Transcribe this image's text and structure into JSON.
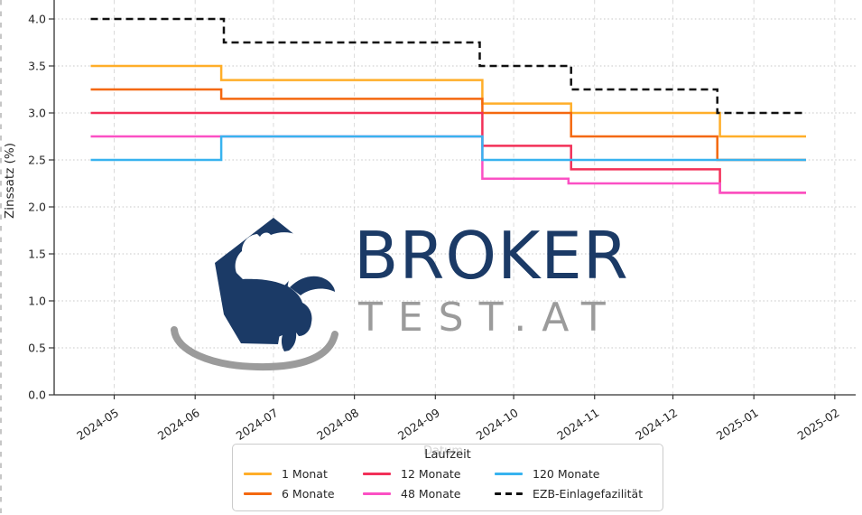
{
  "page": {
    "background": "#ffffff"
  },
  "watermark": {
    "icon": "bull-bear-logo",
    "brand_primary": "BROKER",
    "brand_secondary": "TEST.AT",
    "primary_color": "#1b3a66",
    "secondary_color": "#9b9b9b"
  },
  "chart_data": {
    "type": "line",
    "step": "post",
    "title": "",
    "xlabel": "Datum",
    "ylabel": "Zinssatz (%)",
    "x_ticks": [
      "2024-05",
      "2024-06",
      "2024-07",
      "2024-08",
      "2024-09",
      "2024-10",
      "2024-11",
      "2024-12",
      "2025-01",
      "2025-02"
    ],
    "y_ticks": [
      "0.0",
      "0.5",
      "1.0",
      "1.5",
      "2.0",
      "2.5",
      "3.0",
      "3.5",
      "4.0"
    ],
    "xlim": [
      "2024-04-08",
      "2025-02-09"
    ],
    "ylim": [
      0.0,
      4.2
    ],
    "grid": true,
    "legend": {
      "title": "Laufzeit",
      "position": "bottom",
      "columns": 3
    },
    "axis_color": "#333333",
    "grid_color_h": "#c9c9c9",
    "grid_color_v": "#d6d6d6",
    "series": [
      {
        "name": "1 Monat",
        "color": "#ffae29",
        "dash": null,
        "points": [
          [
            "2024-04-22",
            3.5
          ],
          [
            "2024-06-11",
            3.35
          ],
          [
            "2024-09-19",
            3.1
          ],
          [
            "2024-10-23",
            3.0
          ],
          [
            "2024-12-19",
            2.75
          ],
          [
            "2025-01-21",
            2.75
          ]
        ]
      },
      {
        "name": "6 Monate",
        "color": "#f4680f",
        "dash": null,
        "points": [
          [
            "2024-04-22",
            3.25
          ],
          [
            "2024-06-11",
            3.15
          ],
          [
            "2024-09-19",
            3.0
          ],
          [
            "2024-10-23",
            2.75
          ],
          [
            "2024-12-18",
            2.5
          ],
          [
            "2025-01-21",
            2.5
          ]
        ]
      },
      {
        "name": "12 Monate",
        "color": "#f23058",
        "dash": null,
        "points": [
          [
            "2024-04-22",
            3.0
          ],
          [
            "2024-09-19",
            2.65
          ],
          [
            "2024-10-23",
            2.4
          ],
          [
            "2024-12-19",
            2.15
          ],
          [
            "2025-01-21",
            2.15
          ]
        ]
      },
      {
        "name": "48 Monate",
        "color": "#fb50c4",
        "dash": null,
        "points": [
          [
            "2024-04-22",
            2.75
          ],
          [
            "2024-09-19",
            2.3
          ],
          [
            "2024-10-22",
            2.25
          ],
          [
            "2024-12-19",
            2.15
          ],
          [
            "2025-01-21",
            2.15
          ]
        ]
      },
      {
        "name": "120 Monate",
        "color": "#38b3ef",
        "dash": null,
        "points": [
          [
            "2024-04-22",
            2.5
          ],
          [
            "2024-06-11",
            2.75
          ],
          [
            "2024-09-19",
            2.5
          ],
          [
            "2025-01-21",
            2.5
          ]
        ]
      },
      {
        "name": "EZB-Einlagefazilität",
        "color": "#111111",
        "dash": "8,5",
        "points": [
          [
            "2024-04-22",
            4.0
          ],
          [
            "2024-06-12",
            3.75
          ],
          [
            "2024-09-18",
            3.5
          ],
          [
            "2024-10-23",
            3.25
          ],
          [
            "2024-12-18",
            3.0
          ],
          [
            "2025-01-21",
            3.0
          ]
        ]
      }
    ]
  }
}
